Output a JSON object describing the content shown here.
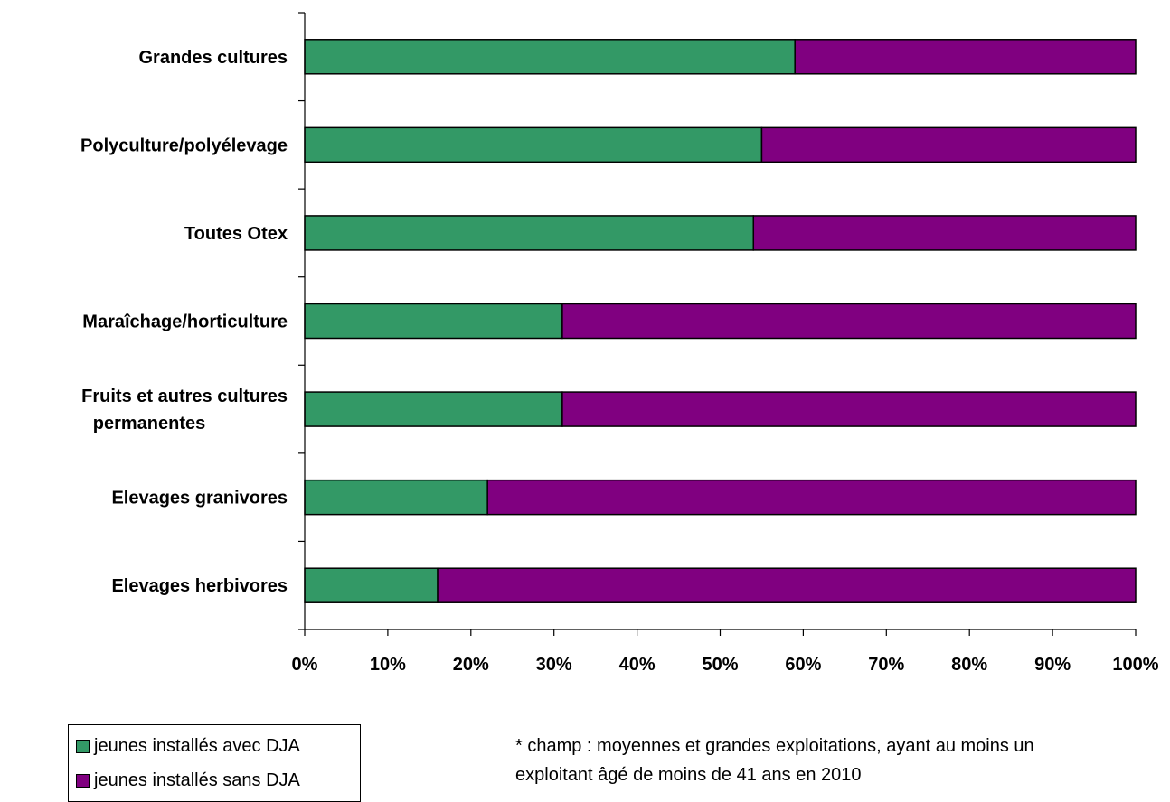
{
  "chart_data": {
    "type": "bar",
    "orientation": "horizontal",
    "stacked": "percent",
    "categories": [
      "Grandes cultures",
      "Polyculture/polyélevage",
      "Toutes Otex",
      "Maraîchage/horticulture",
      "Fruits et autres cultures permanentes",
      "Elevages granivores",
      "Elevages herbivores"
    ],
    "category_label_lines": [
      [
        "Grandes cultures"
      ],
      [
        "Polyculture/polyélevage"
      ],
      [
        "Toutes Otex"
      ],
      [
        "Maraîchage/horticulture"
      ],
      [
        "Fruits et autres cultures",
        "permanentes"
      ],
      [
        "Elevages granivores"
      ],
      [
        "Elevages herbivores"
      ]
    ],
    "series": [
      {
        "name": "jeunes installés avec DJA",
        "color": "#339966",
        "values": [
          59,
          55,
          54,
          31,
          31,
          22,
          16
        ]
      },
      {
        "name": "jeunes installés sans DJA",
        "color": "#800080",
        "values": [
          41,
          45,
          46,
          69,
          69,
          78,
          84
        ]
      }
    ],
    "xlim": [
      0,
      100
    ],
    "xticks": [
      "0%",
      "10%",
      "20%",
      "30%",
      "40%",
      "50%",
      "60%",
      "70%",
      "80%",
      "90%",
      "100%"
    ],
    "grid": false,
    "legend_position": "bottom-left"
  },
  "legend": {
    "items": [
      {
        "label": "jeunes installés avec DJA",
        "color": "#339966"
      },
      {
        "label": "jeunes installés sans DJA",
        "color": "#800080"
      }
    ]
  },
  "note": {
    "line1": "* champ : moyennes et grandes exploitations, ayant au moins un",
    "line2": "exploitant âgé de moins de 41 ans en 2010"
  }
}
